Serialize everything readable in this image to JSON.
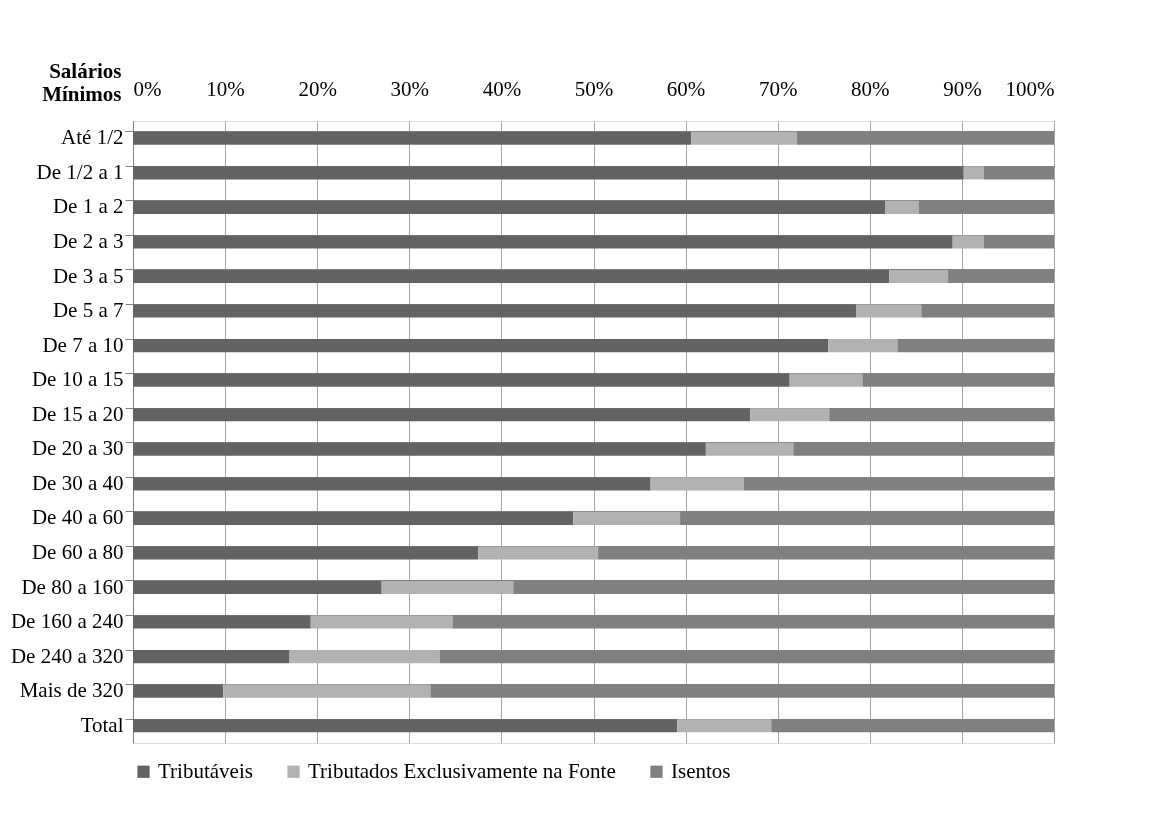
{
  "chart_data": {
    "type": "bar",
    "orientation": "horizontal",
    "stacked": true,
    "ylabel": "Salários Mínimos",
    "categories": [
      "Até 1/2",
      "De 1/2 a 1",
      "De 1 a 2",
      "De 2 a 3",
      "De 3 a 5",
      "De 5 a 7",
      "De 7 a 10",
      "De 10 a 15",
      "De 15 a 20",
      "De 20 a 30",
      "De 30 a 40",
      "De 40 a 60",
      "De 60 a 80",
      "De 80 a 160",
      "De 160 a 240",
      "De 240 a 320",
      "Mais de 320",
      "Total"
    ],
    "series": [
      {
        "name": "Tributáveis",
        "color": "#636363",
        "values": [
          60.6,
          90.2,
          81.7,
          89.0,
          82.1,
          78.5,
          75.5,
          71.3,
          67.0,
          62.2,
          56.2,
          47.8,
          37.5,
          27.0,
          19.3,
          17.0,
          9.8,
          59.1
        ]
      },
      {
        "name": "Tributados Exclusivamente na Fonte",
        "color": "#b2b2b2",
        "values": [
          11.5,
          2.2,
          3.6,
          3.4,
          6.4,
          7.1,
          7.5,
          7.9,
          8.6,
          9.5,
          10.1,
          11.6,
          13.0,
          14.3,
          15.4,
          16.3,
          22.5,
          10.2
        ]
      },
      {
        "name": "Isentos",
        "color": "#808080",
        "values": [
          27.9,
          7.6,
          14.7,
          7.6,
          11.5,
          14.4,
          17.0,
          20.8,
          24.4,
          28.3,
          33.7,
          40.6,
          49.5,
          58.7,
          65.3,
          66.7,
          67.7,
          30.7
        ]
      }
    ],
    "xlim": [
      0,
      100
    ],
    "xticks": [
      {
        "value": 0,
        "label": "0%"
      },
      {
        "value": 10,
        "label": "10%"
      },
      {
        "value": 20,
        "label": "20%"
      },
      {
        "value": 30,
        "label": "30%"
      },
      {
        "value": 40,
        "label": "40%"
      },
      {
        "value": 50,
        "label": "50%"
      },
      {
        "value": 60,
        "label": "60%"
      },
      {
        "value": 70,
        "label": "70%"
      },
      {
        "value": 80,
        "label": "80%"
      },
      {
        "value": 90,
        "label": "90%"
      },
      {
        "value": 100,
        "label": "100%"
      }
    ],
    "grid": true,
    "legend": "bottom"
  }
}
